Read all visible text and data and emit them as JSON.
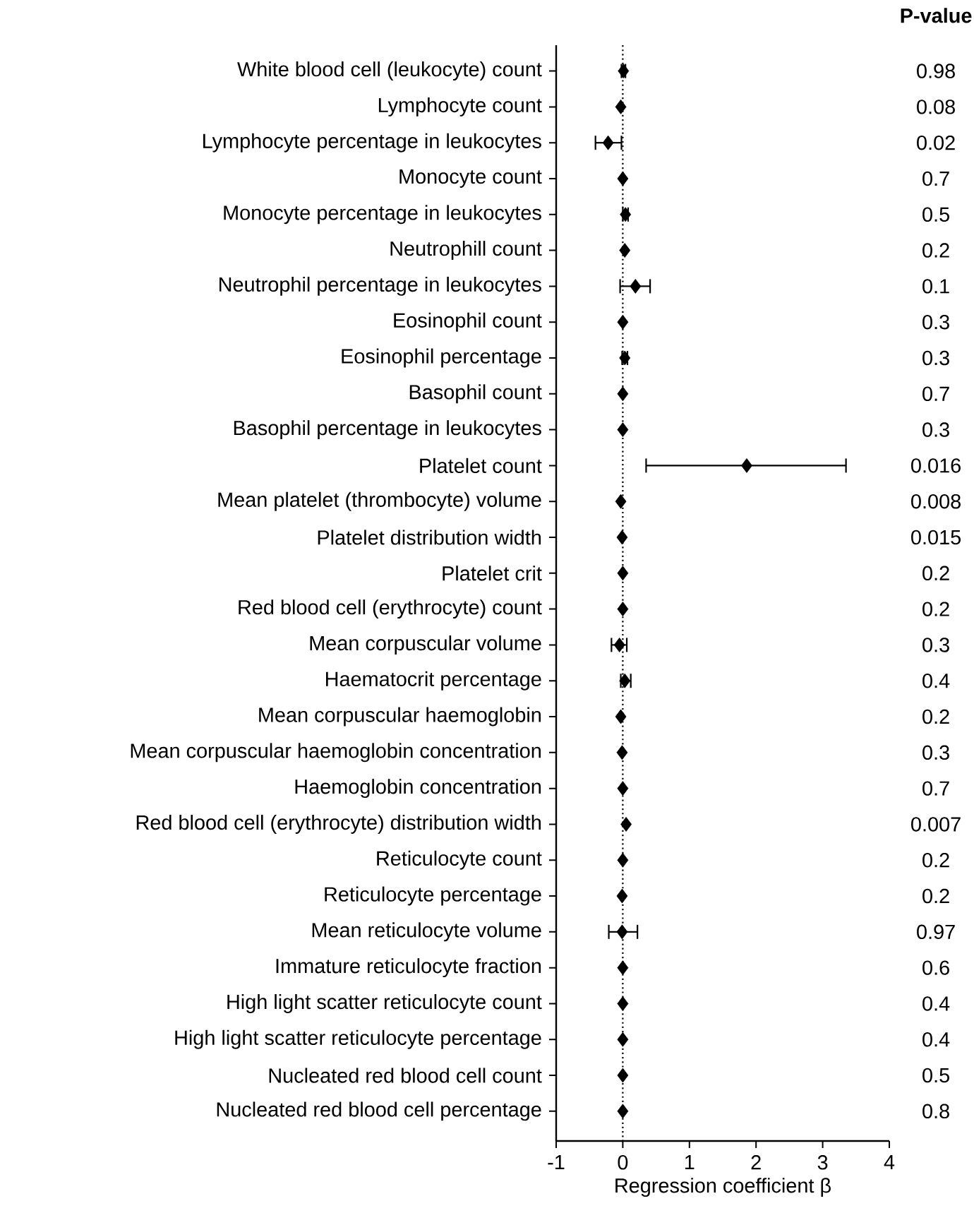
{
  "chart_data": {
    "type": "scatter",
    "orientation": "horizontal",
    "categories": [
      "White blood cell (leukocyte) count",
      "Lymphocyte count",
      "Lymphocyte percentage in leukocytes",
      "Monocyte count",
      "Monocyte percentage in leukocytes",
      "Neutrophill count",
      "Neutrophil percentage in leukocytes",
      "Eosinophil count",
      "Eosinophil percentage",
      "Basophil count",
      "Basophil percentage in leukocytes",
      "Platelet count",
      "Mean platelet (thrombocyte) volume",
      "Platelet distribution width",
      "Platelet crit",
      "Red blood cell (erythrocyte) count",
      "Mean corpuscular volume",
      "Haematocrit percentage",
      "Mean corpuscular haemoglobin",
      "Mean corpuscular haemoglobin concentration",
      "Haemoglobin concentration",
      "Red blood cell (erythrocyte) distribution width",
      "Reticulocyte count",
      "Reticulocyte percentage",
      "Mean reticulocyte volume",
      "Immature reticulocyte fraction",
      "High light scatter reticulocyte count",
      "High light scatter reticulocyte percentage",
      "Nucleated red blood cell count",
      "Nucleated red blood cell percentage"
    ],
    "series": [
      {
        "color": "#000000",
        "values": [
          0.01,
          -0.03,
          -0.22,
          0,
          0.04,
          0.03,
          0.19,
          0,
          0.03,
          0,
          0,
          1.86,
          -0.03,
          -0.01,
          0,
          0,
          -0.05,
          0.03,
          -0.03,
          -0.01,
          0,
          0.05,
          0,
          -0.01,
          -0.01,
          0,
          0,
          0,
          0,
          0
        ],
        "errors": [
          0.03,
          null,
          [
            -0.41,
            -0.02
          ],
          null,
          0.04,
          null,
          [
            -0.04,
            0.41
          ],
          null,
          0.04,
          null,
          null,
          [
            0.35,
            3.35
          ],
          null,
          null,
          null,
          null,
          [
            -0.17,
            0.06
          ],
          [
            -0.03,
            0.12
          ],
          null,
          null,
          null,
          null,
          null,
          null,
          [
            -0.21,
            0.22
          ],
          null,
          null,
          null,
          null,
          null
        ]
      }
    ],
    "xlim": [
      -1,
      4
    ],
    "xticks": [
      -1,
      0,
      1,
      2,
      3,
      4
    ],
    "xlabel": "Regression coefficient β",
    "marker": "diamond",
    "ref_lines": [
      {
        "axis": "x",
        "value": 0,
        "line_style": "dotted"
      }
    ],
    "annotations": [
      "**P-value**",
      "0.98",
      "0.08",
      "0.02",
      "0.7",
      "0.5",
      "0.2",
      "0.1",
      "0.3",
      "0.3",
      "0.7",
      "0.3",
      "0.016",
      "0.008",
      "0.015",
      "0.2",
      "0.2",
      "0.3",
      "0.4",
      "0.2",
      "0.3",
      "0.7",
      "0.007",
      "0.2",
      "0.2",
      "0.97",
      "0.6",
      "0.4",
      "0.4",
      "0.5",
      "0.8"
    ]
  }
}
